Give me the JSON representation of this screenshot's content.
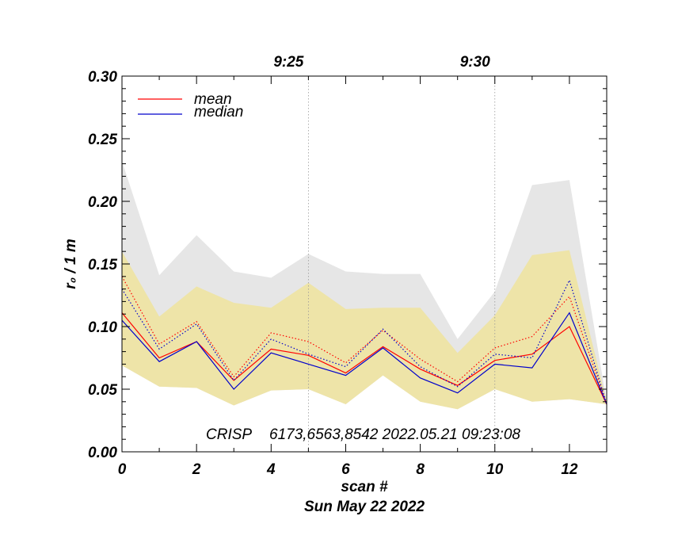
{
  "chart_data": {
    "type": "line",
    "xlabel": "scan #",
    "date_label": "Sun May 22 2022",
    "ylabel": "r₀ / 1 m",
    "ylim": [
      0.0,
      0.3
    ],
    "xlim": [
      0,
      13
    ],
    "x_ticks": [
      0,
      2,
      4,
      6,
      8,
      10,
      12
    ],
    "x_tick_labels": [
      "0",
      "2",
      "4",
      "6",
      "8",
      "10",
      "12"
    ],
    "y_ticks": [
      0.0,
      0.05,
      0.1,
      0.15,
      0.2,
      0.25,
      0.3
    ],
    "y_tick_labels": [
      "0.00",
      "0.05",
      "0.10",
      "0.15",
      "0.20",
      "0.25",
      "0.30"
    ],
    "top_time_ticks": [
      {
        "x": 5,
        "label": "9:25"
      },
      {
        "x": 10,
        "label": "9:30"
      }
    ],
    "x": [
      0,
      1,
      2,
      3,
      4,
      5,
      6,
      7,
      8,
      9,
      10,
      11,
      12,
      13
    ],
    "series": [
      {
        "name": "mean",
        "color": "#ff0000",
        "style": "solid",
        "values": [
          0.111,
          0.075,
          0.088,
          0.057,
          0.082,
          0.077,
          0.063,
          0.084,
          0.066,
          0.053,
          0.073,
          0.078,
          0.1,
          0.038
        ]
      },
      {
        "name": "median",
        "color": "#0000cc",
        "style": "solid",
        "values": [
          0.105,
          0.072,
          0.088,
          0.05,
          0.079,
          0.07,
          0.061,
          0.083,
          0.059,
          0.047,
          0.07,
          0.067,
          0.111,
          0.038
        ]
      },
      {
        "color": "#ff0000",
        "style": "dotted",
        "values": [
          0.14,
          0.086,
          0.104,
          0.06,
          0.095,
          0.088,
          0.071,
          0.097,
          0.074,
          0.056,
          0.083,
          0.092,
          0.124,
          0.038
        ]
      },
      {
        "color": "#0000cc",
        "style": "dotted",
        "values": [
          0.13,
          0.082,
          0.102,
          0.057,
          0.09,
          0.078,
          0.068,
          0.098,
          0.068,
          0.052,
          0.078,
          0.075,
          0.137,
          0.038
        ]
      }
    ],
    "bands": [
      {
        "color": "#e6e6e6",
        "upper": [
          0.232,
          0.141,
          0.173,
          0.144,
          0.139,
          0.158,
          0.144,
          0.142,
          0.142,
          0.09,
          0.128,
          0.213,
          0.217,
          0.04
        ],
        "lower": [
          0.069,
          0.052,
          0.051,
          0.037,
          0.049,
          0.05,
          0.038,
          0.061,
          0.04,
          0.034,
          0.05,
          0.04,
          0.042,
          0.038
        ]
      },
      {
        "color": "#eee4a8",
        "upper": [
          0.16,
          0.108,
          0.132,
          0.119,
          0.115,
          0.135,
          0.114,
          0.115,
          0.115,
          0.079,
          0.109,
          0.157,
          0.161,
          0.04
        ],
        "lower": [
          0.069,
          0.052,
          0.051,
          0.037,
          0.049,
          0.05,
          0.038,
          0.061,
          0.04,
          0.034,
          0.05,
          0.04,
          0.042,
          0.038
        ]
      }
    ],
    "legend": {
      "position": "top-left",
      "entries": [
        {
          "label": "mean",
          "color": "#ff0000"
        },
        {
          "label": "median",
          "color": "#0000cc"
        }
      ]
    },
    "annotation": {
      "instrument": "CRISP",
      "details": "6173,6563,8542 2022.05.21 09:23:08"
    }
  }
}
